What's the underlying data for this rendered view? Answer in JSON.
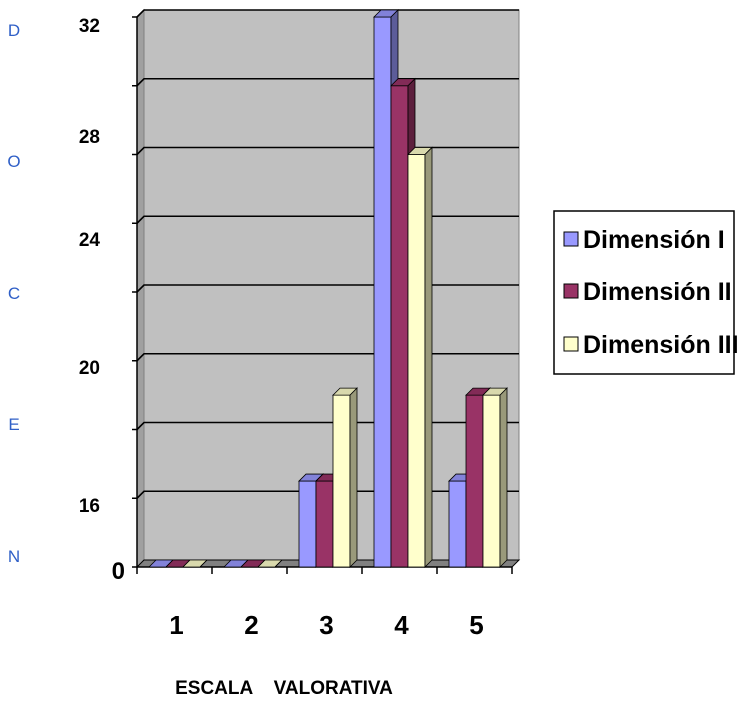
{
  "side_label_letters": [
    "D",
    "O",
    "C",
    "E",
    "N"
  ],
  "y_tick_labels": [
    {
      "text": "32",
      "value": 32
    },
    {
      "text": "28",
      "value": 28
    },
    {
      "text": "24",
      "value": 24
    },
    {
      "text": "20",
      "value": 20
    },
    {
      "text": "16",
      "value": 16
    },
    {
      "text": "0",
      "value": 0
    }
  ],
  "colors": {
    "background": "#ffffff",
    "plot_wall": "#c0c0c0",
    "plot_floor": "#808080",
    "grid": "#000000",
    "side_letters": "#2f5fc7"
  },
  "chart_data": {
    "type": "bar",
    "title": "",
    "xlabel": "ESCALA    VALORATIVA",
    "ylabel": "DOCEN",
    "categories": [
      "1",
      "2",
      "3",
      "4",
      "5"
    ],
    "series": [
      {
        "name": "Dimensión I",
        "color": "#9999ff",
        "values": [
          0,
          0,
          5,
          32,
          5
        ]
      },
      {
        "name": "Dimensión II",
        "color": "#993366",
        "values": [
          0,
          0,
          5,
          28,
          10
        ]
      },
      {
        "name": "Dimensión III",
        "color": "#ffffcc",
        "values": [
          0,
          0,
          10,
          24,
          10
        ]
      }
    ],
    "ylim": [
      0,
      32
    ],
    "grid": true,
    "legend": "right",
    "three_d": true
  }
}
